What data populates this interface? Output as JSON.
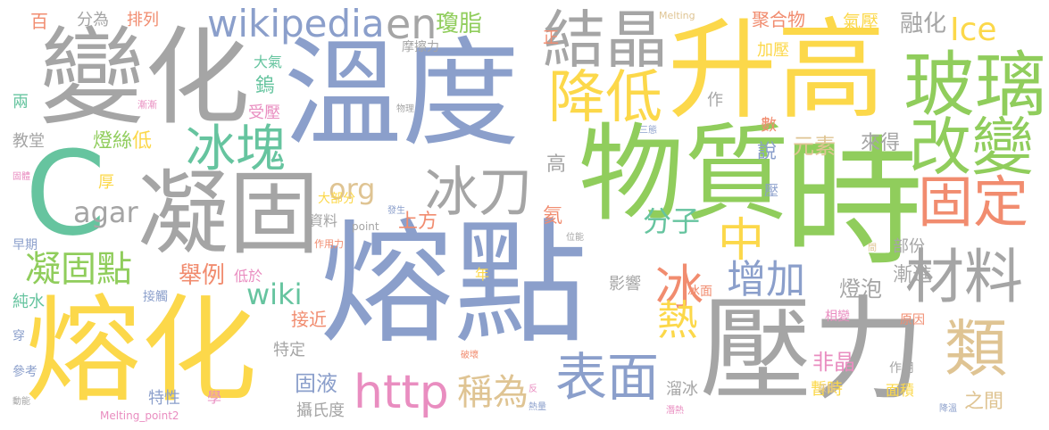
{
  "palette": {
    "blue": "#8b9fcb",
    "gray": "#a5a5a5",
    "yellow": "#fcd84a",
    "green": "#90cd5c",
    "teal": "#66c49f",
    "orange": "#f18c6f",
    "tan": "#dfc493",
    "pink": "#e98dc0"
  },
  "words": [
    {
      "id": "熔點",
      "text": "熔點",
      "color": "blue"
    },
    {
      "id": "溫度",
      "text": "溫度",
      "color": "blue"
    },
    {
      "id": "升高",
      "text": "升高",
      "color": "yellow"
    },
    {
      "id": "壓力",
      "text": "壓力",
      "color": "gray"
    },
    {
      "id": "時",
      "text": "時",
      "color": "green"
    },
    {
      "id": "變化",
      "text": "變化",
      "color": "gray"
    },
    {
      "id": "熔化",
      "text": "熔化",
      "color": "yellow"
    },
    {
      "id": "凝固",
      "text": "凝固",
      "color": "gray"
    },
    {
      "id": "物質",
      "text": "物質",
      "color": "green"
    },
    {
      "id": "C",
      "text": "C",
      "color": "teal"
    },
    {
      "id": "玻璃",
      "text": "玻璃",
      "color": "green"
    },
    {
      "id": "結晶",
      "text": "結晶",
      "color": "gray"
    },
    {
      "id": "改變",
      "text": "改變",
      "color": "green"
    },
    {
      "id": "降低",
      "text": "降低",
      "color": "yellow"
    },
    {
      "id": "固定",
      "text": "固定",
      "color": "orange"
    },
    {
      "id": "材料",
      "text": "材料",
      "color": "gray"
    },
    {
      "id": "類",
      "text": "類",
      "color": "tan"
    },
    {
      "id": "表面",
      "text": "表面",
      "color": "blue"
    },
    {
      "id": "冰塊",
      "text": "冰塊",
      "color": "teal"
    },
    {
      "id": "冰刀",
      "text": "冰刀",
      "color": "gray"
    },
    {
      "id": "http",
      "text": "http",
      "color": "pink"
    },
    {
      "id": "wikipedia",
      "text": "wikipedia",
      "color": "blue"
    },
    {
      "id": "en",
      "text": "en",
      "color": "gray"
    },
    {
      "id": "凝固點",
      "text": "凝固點",
      "color": "green"
    },
    {
      "id": "中",
      "text": "中",
      "color": "yellow"
    },
    {
      "id": "冰",
      "text": "冰",
      "color": "orange"
    },
    {
      "id": "熱",
      "text": "熱",
      "color": "yellow"
    },
    {
      "id": "增加",
      "text": "增加",
      "color": "blue"
    },
    {
      "id": "稱為",
      "text": "稱為",
      "color": "tan"
    },
    {
      "id": "Ice",
      "text": "Ice",
      "color": "yellow"
    },
    {
      "id": "分子",
      "text": "分子",
      "color": "teal"
    },
    {
      "id": "agar",
      "text": "agar",
      "color": "gray"
    },
    {
      "id": "org",
      "text": "org",
      "color": "tan"
    },
    {
      "id": "wiki",
      "text": "wiki",
      "color": "teal"
    },
    {
      "id": "瓊脂",
      "text": "瓊脂",
      "color": "green"
    },
    {
      "id": "融化",
      "text": "融化",
      "color": "gray"
    },
    {
      "id": "燈泡",
      "text": "燈泡",
      "color": "gray"
    },
    {
      "id": "舉例",
      "text": "舉例",
      "color": "orange"
    },
    {
      "id": "固液",
      "text": "固液",
      "color": "blue"
    },
    {
      "id": "非晶",
      "text": "非晶",
      "color": "pink"
    },
    {
      "id": "元素",
      "text": "元素",
      "color": "tan"
    },
    {
      "id": "燈絲",
      "text": "燈絲",
      "color": "green"
    },
    {
      "id": "漸進",
      "text": "漸進",
      "color": "gray"
    },
    {
      "id": "之間",
      "text": "之間",
      "color": "tan"
    },
    {
      "id": "來得",
      "text": "來得",
      "color": "gray"
    },
    {
      "id": "聚合物",
      "text": "聚合物",
      "color": "orange"
    },
    {
      "id": "上方",
      "text": "上方",
      "color": "orange"
    },
    {
      "id": "高",
      "text": "高",
      "color": "gray"
    },
    {
      "id": "低",
      "text": "低",
      "color": "yellow"
    },
    {
      "id": "鎢",
      "text": "鎢",
      "color": "teal"
    },
    {
      "id": "氣壓",
      "text": "氣壓",
      "color": "yellow"
    },
    {
      "id": "加壓",
      "text": "加壓",
      "color": "yellow"
    },
    {
      "id": "氦",
      "text": "氦",
      "color": "orange"
    },
    {
      "id": "接近",
      "text": "接近",
      "color": "orange"
    },
    {
      "id": "分為",
      "text": "分為",
      "color": "gray"
    },
    {
      "id": "排列",
      "text": "排列",
      "color": "orange"
    },
    {
      "id": "百",
      "text": "百",
      "color": "orange"
    },
    {
      "id": "正",
      "text": "正",
      "color": "orange"
    },
    {
      "id": "教堂",
      "text": "教堂",
      "color": "gray"
    },
    {
      "id": "兩",
      "text": "兩",
      "color": "teal"
    },
    {
      "id": "純水",
      "text": "純水",
      "color": "teal"
    },
    {
      "id": "數",
      "text": "數",
      "color": "orange"
    },
    {
      "id": "說",
      "text": "說",
      "color": "blue"
    },
    {
      "id": "部份",
      "text": "部份",
      "color": "gray"
    },
    {
      "id": "影響",
      "text": "影響",
      "color": "gray"
    },
    {
      "id": "作",
      "text": "作",
      "color": "gray"
    },
    {
      "id": "大氣",
      "text": "大氣",
      "color": "teal"
    },
    {
      "id": "受壓",
      "text": "受壓",
      "color": "pink"
    },
    {
      "id": "厚",
      "text": "厚",
      "color": "yellow"
    },
    {
      "id": "資料",
      "text": "資料",
      "color": "gray"
    },
    {
      "id": "特定",
      "text": "特定",
      "color": "gray"
    },
    {
      "id": "攝氏度",
      "text": "攝氏度",
      "color": "gray"
    },
    {
      "id": "特性",
      "text": "特性",
      "color": "blue"
    },
    {
      "id": "學",
      "text": "學",
      "color": "pink"
    },
    {
      "id": "暫時",
      "text": "暫時",
      "color": "yellow"
    },
    {
      "id": "溜冰",
      "text": "溜冰",
      "color": "gray"
    },
    {
      "id": "面積",
      "text": "面積",
      "color": "yellow"
    },
    {
      "id": "作用",
      "text": "作用",
      "color": "gray"
    },
    {
      "id": "相變",
      "text": "相變",
      "color": "pink"
    },
    {
      "id": "原因",
      "text": "原因",
      "color": "orange"
    },
    {
      "id": "早期",
      "text": "早期",
      "color": "blue"
    },
    {
      "id": "接觸",
      "text": "接觸",
      "color": "blue"
    },
    {
      "id": "參考",
      "text": "參考",
      "color": "blue"
    },
    {
      "id": "穿",
      "text": "穿",
      "color": "blue"
    },
    {
      "id": "年",
      "text": "年",
      "color": "yellow"
    },
    {
      "id": "低於",
      "text": "低於",
      "color": "pink"
    },
    {
      "id": "大部分",
      "text": "大部分",
      "color": "yellow"
    },
    {
      "id": "摩擦力",
      "text": "摩擦力",
      "color": "gray"
    },
    {
      "id": "壓",
      "text": "壓",
      "color": "blue"
    },
    {
      "id": "冰面",
      "text": "冰面",
      "color": "orange"
    },
    {
      "id": "Melting",
      "text": "Melting",
      "color": "tan"
    },
    {
      "id": "Melting_point2",
      "text": "Melting_point2",
      "color": "pink"
    },
    {
      "id": "point",
      "text": "point",
      "color": "gray"
    },
    {
      "id": "漸漸",
      "text": "漸漸",
      "color": "pink"
    },
    {
      "id": "物理",
      "text": "物理",
      "color": "gray"
    },
    {
      "id": "三態",
      "text": "三態",
      "color": "blue"
    },
    {
      "id": "固體",
      "text": "固體",
      "color": "pink"
    },
    {
      "id": "發生",
      "text": "發生",
      "color": "blue"
    },
    {
      "id": "作用力",
      "text": "作用力",
      "color": "orange"
    },
    {
      "id": "位能",
      "text": "位能",
      "color": "gray"
    },
    {
      "id": "間",
      "text": "間",
      "color": "tan"
    },
    {
      "id": "破壞",
      "text": "破壞",
      "color": "orange"
    },
    {
      "id": "反",
      "text": "反",
      "color": "pink"
    },
    {
      "id": "熱量",
      "text": "熱量",
      "color": "blue"
    },
    {
      "id": "液體",
      "text": "液體",
      "color": "tan"
    },
    {
      "id": "潛熱",
      "text": "潛熱",
      "color": "pink"
    },
    {
      "id": "降溫",
      "text": "降溫",
      "color": "blue"
    },
    {
      "id": "動能",
      "text": "動能",
      "color": "gray"
    }
  ]
}
